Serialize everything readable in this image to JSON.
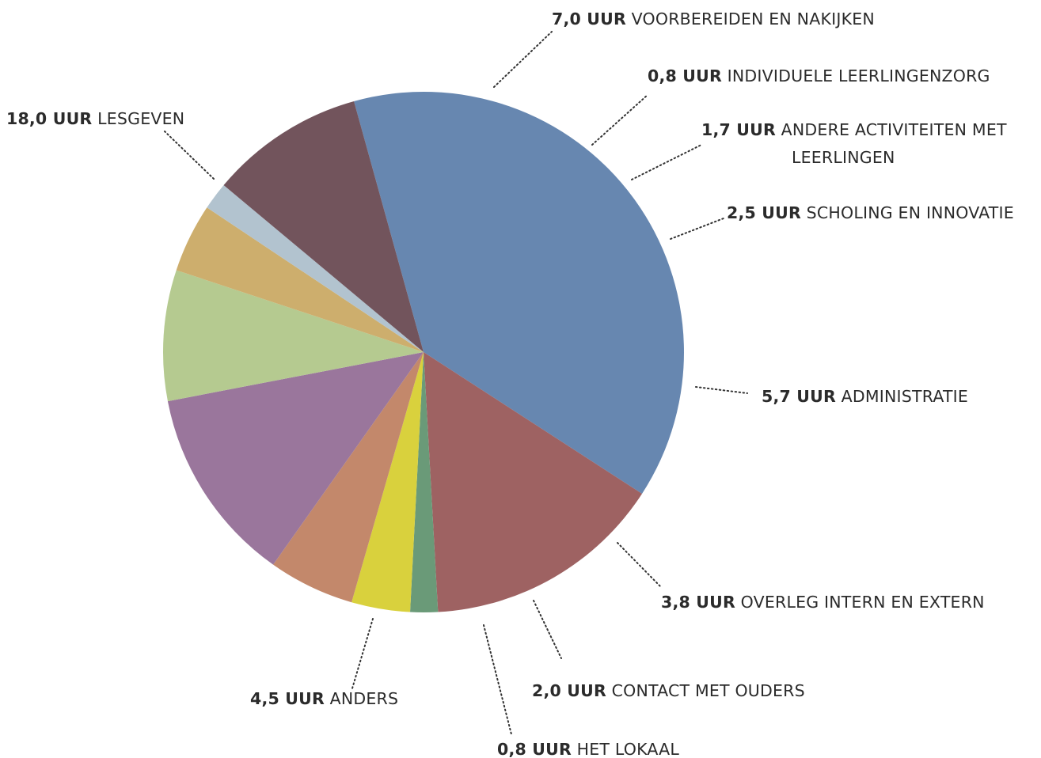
{
  "chart_data": {
    "type": "pie",
    "unit": "UUR",
    "slices": [
      {
        "value_label": "18,0 UUR",
        "label": "LESGEVEN",
        "value": 18.0,
        "color": "#6787b0"
      },
      {
        "value_label": "7,0 UUR",
        "label": "VOORBEREIDEN EN NAKIJKEN",
        "value": 7.0,
        "color": "#9e6262"
      },
      {
        "value_label": "0,8 UUR",
        "label": "INDIVIDUELE LEERLINGENZORG",
        "value": 0.8,
        "color": "#6a9a78"
      },
      {
        "value_label": "1,7 UUR",
        "label": "ANDERE ACTIVITEITEN MET",
        "label2": "LEERLINGEN",
        "value": 1.7,
        "color": "#d9d13d"
      },
      {
        "value_label": "2,5 UUR",
        "label": "SCHOLING EN INNOVATIE",
        "value": 2.5,
        "color": "#c3886b"
      },
      {
        "value_label": "5,7 UUR",
        "label": "ADMINISTRATIE",
        "value": 5.7,
        "color": "#9a769c"
      },
      {
        "value_label": "3,8 UUR",
        "label": "OVERLEG INTERN EN EXTERN",
        "value": 3.8,
        "color": "#b5ca90"
      },
      {
        "value_label": "2,0 UUR",
        "label": "CONTACT MET OUDERS",
        "value": 2.0,
        "color": "#cdae6d"
      },
      {
        "value_label": "0,8 UUR",
        "label": "HET LOKAAL",
        "value": 0.8,
        "color": "#b2c3cf"
      },
      {
        "value_label": "4,5 UUR",
        "label": "ANDERS",
        "value": 4.5,
        "color": "#72545c"
      }
    ]
  }
}
